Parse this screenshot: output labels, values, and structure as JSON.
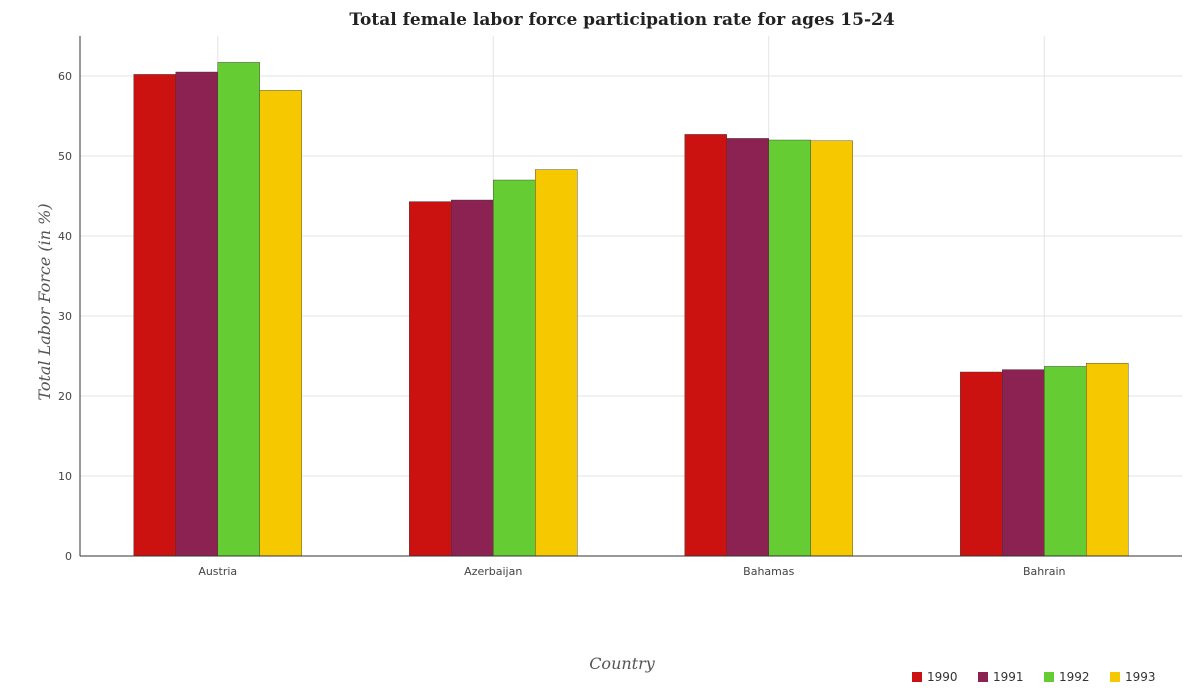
{
  "chart_data": {
    "type": "bar",
    "title": "Total female labor force participation rate for ages 15-24",
    "xlabel": "Country",
    "ylabel": "Total Labor Force (in %)",
    "categories": [
      "Austria",
      "Azerbaijan",
      "Bahamas",
      "Bahrain"
    ],
    "series": [
      {
        "name": "1990",
        "color": "#cc1111",
        "values": [
          60.2,
          44.3,
          52.7,
          23.0
        ]
      },
      {
        "name": "1991",
        "color": "#8b2252",
        "values": [
          60.5,
          44.5,
          52.2,
          23.3
        ]
      },
      {
        "name": "1992",
        "color": "#66cc33",
        "values": [
          61.7,
          47.0,
          52.0,
          23.7
        ]
      },
      {
        "name": "1993",
        "color": "#f5c800",
        "values": [
          58.2,
          48.3,
          51.9,
          24.1
        ]
      }
    ],
    "ylim": [
      0,
      65
    ],
    "yticks": [
      0,
      10,
      20,
      30,
      40,
      50,
      60
    ],
    "grid": true,
    "legend_position": "bottom-right"
  }
}
